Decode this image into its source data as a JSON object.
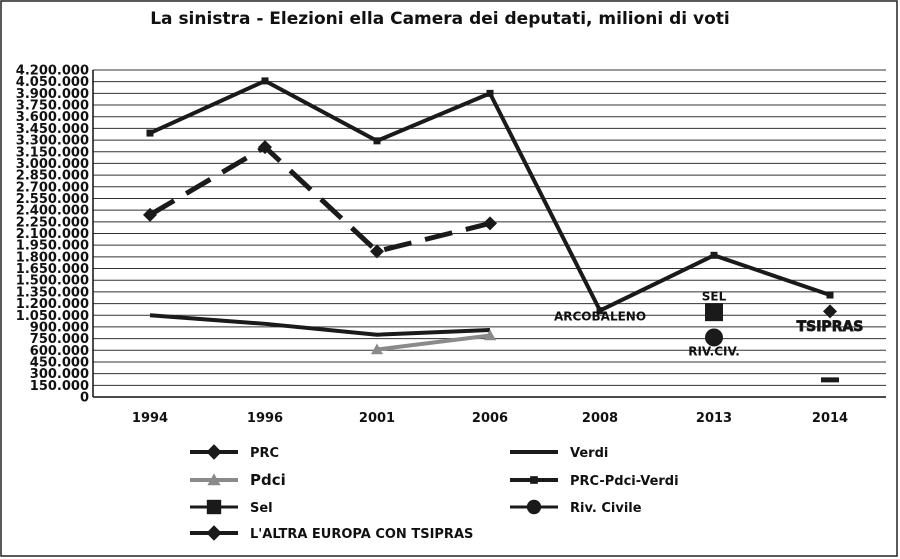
{
  "chart_data": {
    "type": "line",
    "title": "La sinistra - Elezioni ella Camera dei deputati, milioni di voti",
    "categories": [
      "1994",
      "1996",
      "2001",
      "2006",
      "2008",
      "2013",
      "2014"
    ],
    "yticks": [
      "0",
      "150.000",
      "300.000",
      "450.000",
      "600.000",
      "750.000",
      "900.000",
      "1.050.000",
      "1.200.000",
      "1.350.000",
      "1.500.000",
      "1.650.000",
      "1.800.000",
      "1.950.000",
      "2.100.000",
      "2.250.000",
      "2.400.000",
      "2.550.000",
      "2.700.000",
      "2.850.000",
      "3.000.000",
      "3.150.000",
      "3.300.000",
      "3.450.000",
      "3.600.000",
      "3.750.000",
      "3.900.000",
      "4.050.000",
      "4.200.000"
    ],
    "ylim": [
      0,
      4200000
    ],
    "grid": true,
    "legend_position": "bottom",
    "series": [
      {
        "name": "PRC",
        "key": "prc",
        "values": [
          2340000,
          3210000,
          1870000,
          2230000,
          null,
          null,
          null
        ],
        "color": "#1a1a1a",
        "dash": "28,14",
        "marker": "diamond"
      },
      {
        "name": "Verdi",
        "key": "verdi",
        "values": [
          1050000,
          940000,
          800000,
          860000,
          null,
          null,
          null
        ],
        "color": "#1a1a1a",
        "dash": "",
        "marker": "none"
      },
      {
        "name": "Pdci",
        "key": "pdci",
        "values": [
          null,
          null,
          610000,
          790000,
          null,
          null,
          null
        ],
        "color": "#8a8a8a",
        "dash": "",
        "marker": "triangle"
      },
      {
        "name": "PRC-Pdci-Verdi",
        "key": "somma",
        "values": [
          3390000,
          4060000,
          3290000,
          3900000,
          1110000,
          1820000,
          1310000
        ],
        "color": "#1a1a1a",
        "dash": "",
        "marker": "square"
      },
      {
        "name": "Sel",
        "key": "sel",
        "values": [
          null,
          null,
          null,
          null,
          null,
          1090000,
          null
        ],
        "color": "#1a1a1a",
        "dash": "",
        "marker": "bigsquare"
      },
      {
        "name": "Riv. Civile",
        "key": "riv",
        "values": [
          null,
          null,
          null,
          null,
          null,
          765000,
          null
        ],
        "color": "#1a1a1a",
        "dash": "",
        "marker": "circle"
      },
      {
        "name": "L'ALTRA EUROPA CON TSIPRAS",
        "key": "tsipras",
        "values": [
          null,
          null,
          null,
          null,
          null,
          null,
          1100000
        ],
        "color": "#1a1a1a",
        "dash": "",
        "marker": "diamond"
      }
    ],
    "extra_marks": [
      {
        "series": "somma",
        "category": "2014",
        "value": 220000,
        "shape": "dash"
      }
    ],
    "annotations": [
      {
        "text": "ARCOBALENO",
        "category": "2008",
        "value": 1110000,
        "anchor": "left"
      },
      {
        "text": "SEL",
        "category": "2013",
        "value": 1290000,
        "anchor": "above"
      },
      {
        "text": "RIV.CIV.",
        "category": "2013",
        "value": 560000,
        "anchor": "below"
      },
      {
        "text": "TSIPRAS",
        "category": "2014",
        "value": 850000,
        "anchor": "outline"
      }
    ]
  }
}
